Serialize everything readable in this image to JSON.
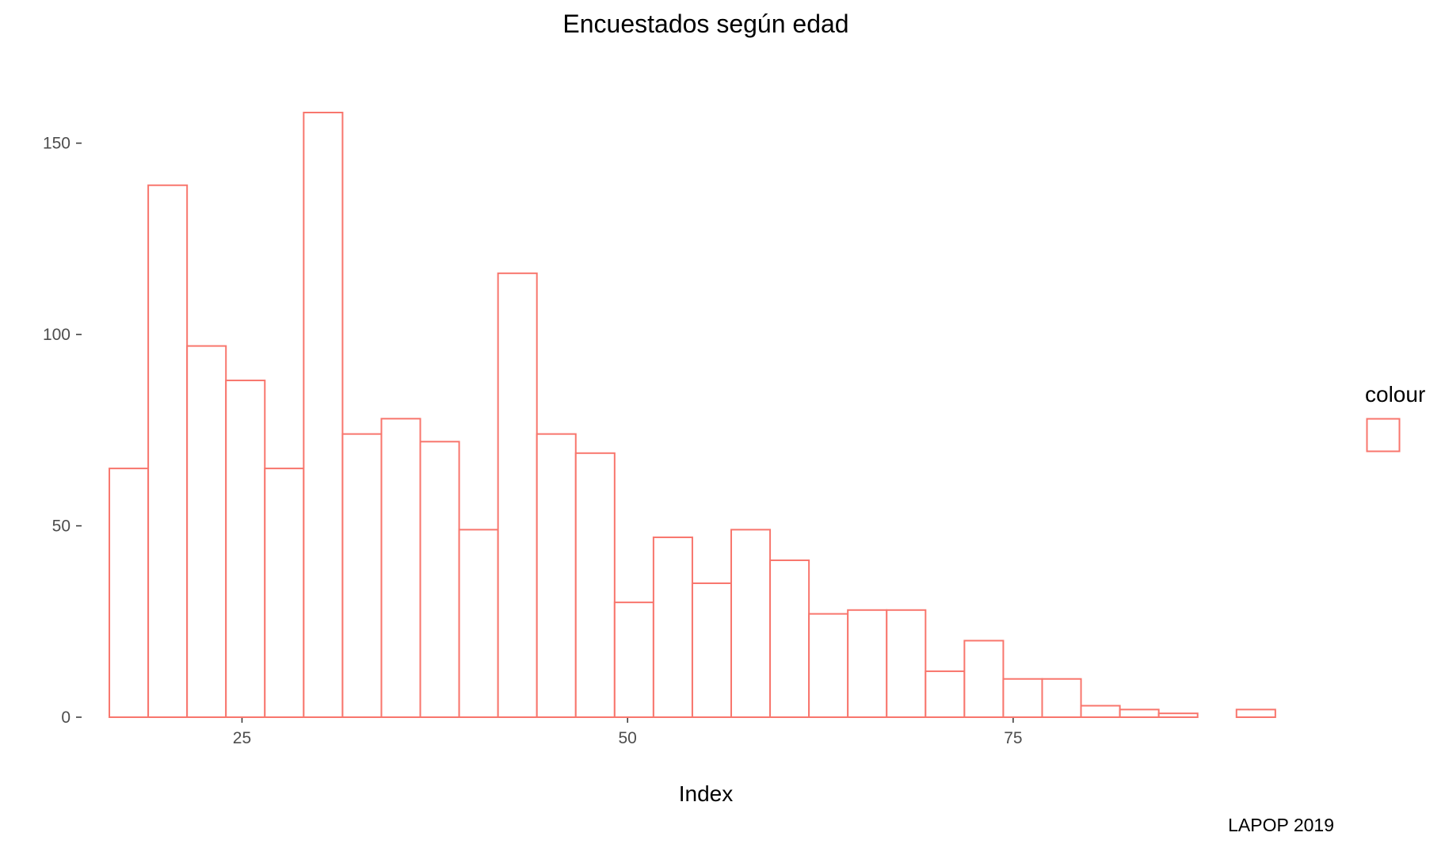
{
  "chart_data": {
    "type": "bar",
    "subtype": "histogram",
    "title": "Encuestados según edad",
    "xlabel": "Index",
    "ylabel": "",
    "caption": "LAPOP 2019",
    "legend": {
      "title": "colour",
      "position": "right"
    },
    "grid": false,
    "xlim": [
      14.6,
      93.6
    ],
    "ylim": [
      0,
      158
    ],
    "x_ticks": [
      25,
      50,
      75
    ],
    "y_ticks": [
      0,
      50,
      100,
      150
    ],
    "bin_width": 2.52,
    "bin_start": 16.4,
    "values": [
      65,
      139,
      97,
      88,
      65,
      158,
      74,
      78,
      72,
      49,
      116,
      74,
      69,
      30,
      47,
      35,
      49,
      41,
      27,
      28,
      28,
      12,
      20,
      10,
      10,
      3,
      2,
      1,
      0,
      2
    ],
    "stroke_color": "#F8766D",
    "fill_color": "#FFFFFF"
  }
}
